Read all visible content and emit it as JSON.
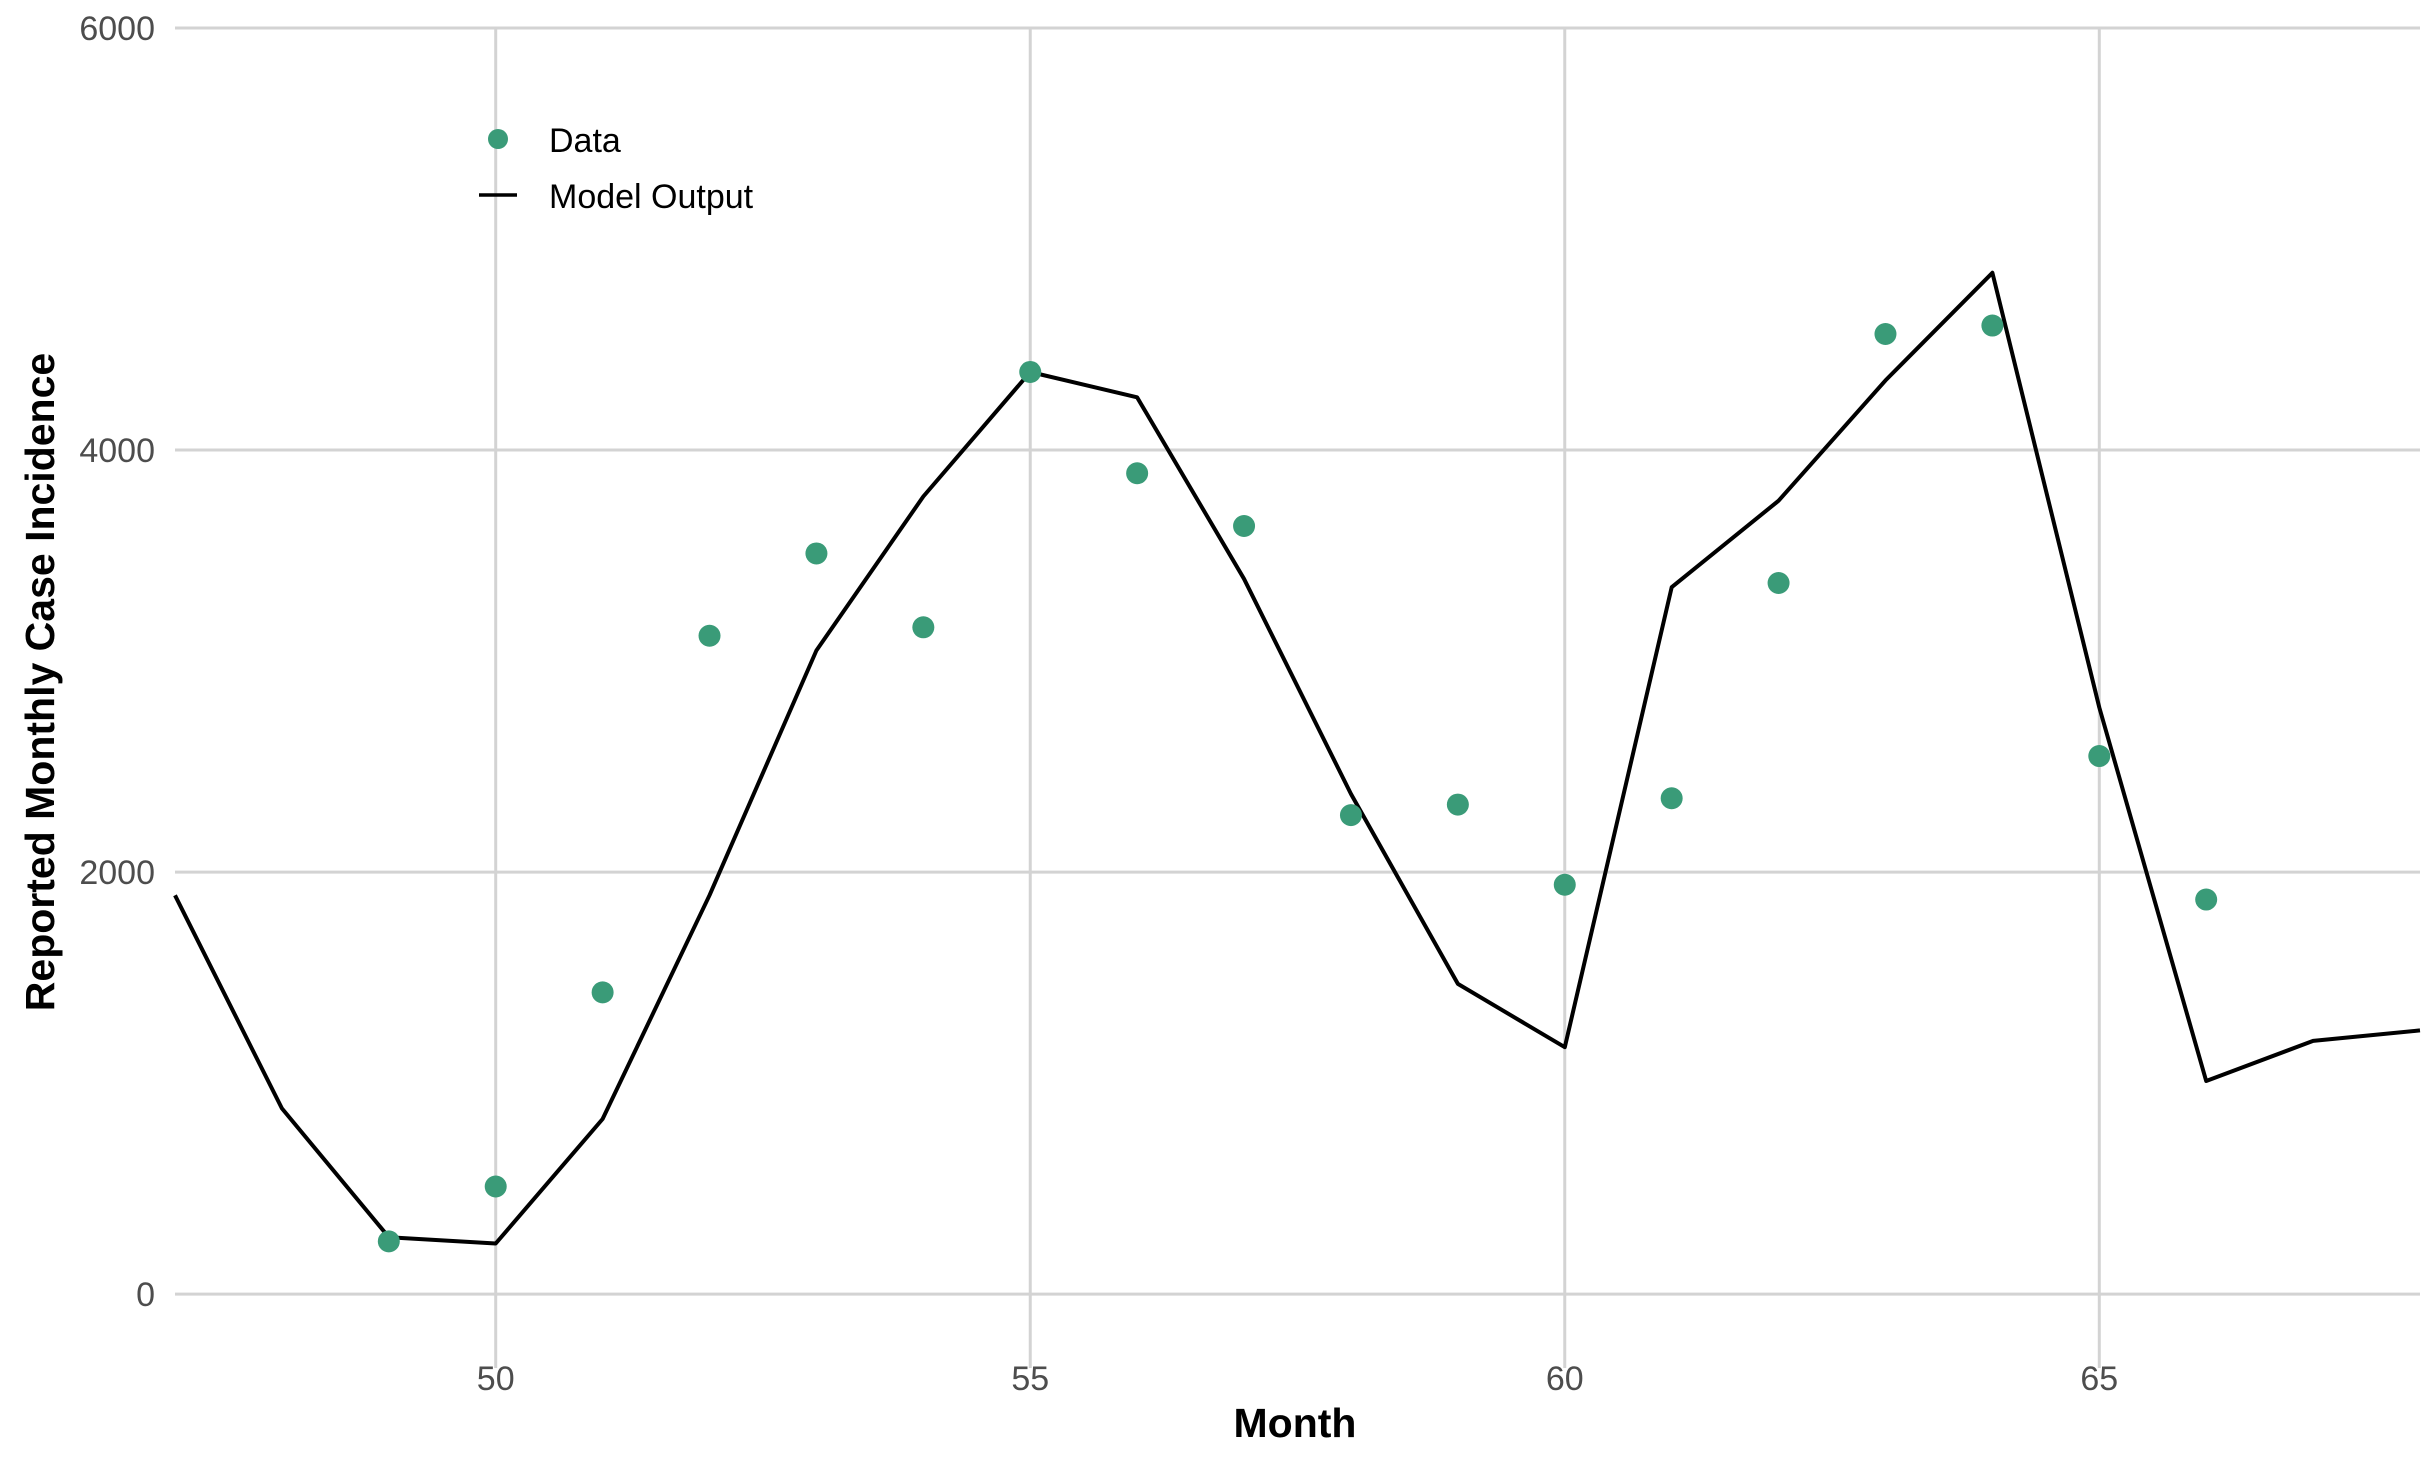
{
  "chart_data": {
    "type": "line",
    "xlabel": "Month",
    "ylabel": "Reported Monthly Case Incidence",
    "xlim": [
      47,
      68
    ],
    "ylim": [
      -350,
      6000
    ],
    "x_ticks": [
      50,
      55,
      60,
      65
    ],
    "y_ticks": [
      0,
      2000,
      4000,
      6000
    ],
    "grid": true,
    "legend_position": "top-left",
    "series": [
      {
        "name": "Data",
        "kind": "scatter",
        "color": "#3a9b78",
        "x": [
          49,
          50,
          51,
          52,
          53,
          54,
          55,
          56,
          57,
          58,
          59,
          60,
          61,
          62,
          63,
          64,
          65,
          66
        ],
        "y": [
          250,
          510,
          1430,
          3120,
          3510,
          3160,
          4370,
          3890,
          3640,
          2270,
          2320,
          1940,
          2350,
          3370,
          4550,
          4590,
          2550,
          1870
        ]
      },
      {
        "name": "Model Output",
        "kind": "line",
        "color": "#000000",
        "x": [
          47,
          48,
          49,
          50,
          51,
          52,
          53,
          54,
          55,
          56,
          57,
          58,
          59,
          60,
          61,
          62,
          63,
          64,
          65,
          66,
          67,
          68
        ],
        "y": [
          1890,
          880,
          270,
          240,
          830,
          1890,
          3050,
          3780,
          4370,
          4250,
          3390,
          2370,
          1470,
          1170,
          3350,
          3760,
          4330,
          4840,
          2780,
          1010,
          1200,
          1250
        ]
      }
    ]
  }
}
